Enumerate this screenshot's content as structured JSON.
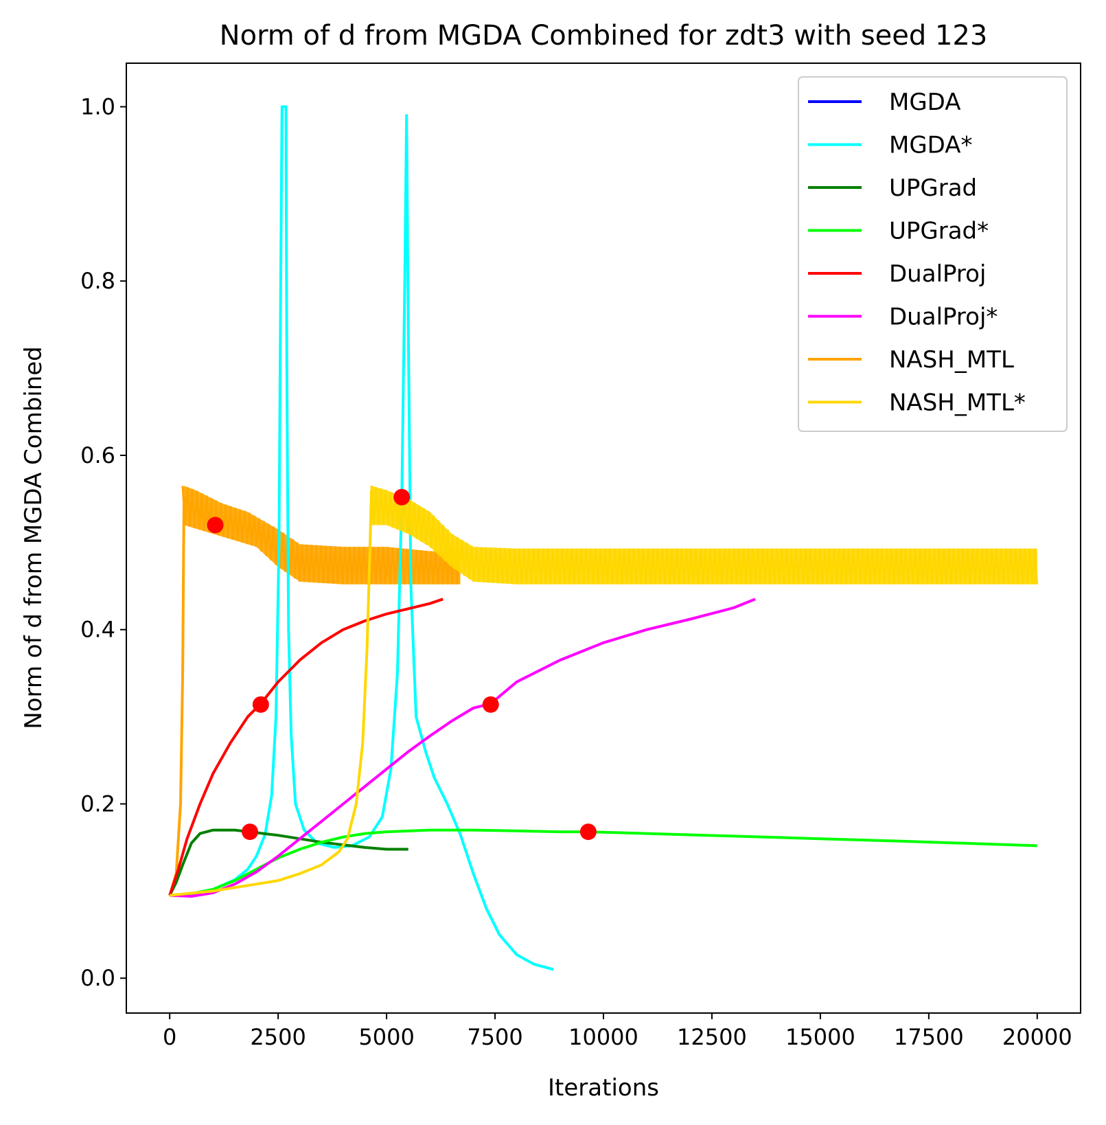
{
  "chart_data": {
    "type": "line",
    "title": "Norm of d from MGDA Combined for zdt3 with seed 123",
    "xlabel": "Iterations",
    "ylabel": "Norm of d from MGDA Combined",
    "xlim": [
      -1000,
      21000
    ],
    "ylim": [
      -0.04,
      1.05
    ],
    "xticks": [
      0,
      2500,
      5000,
      7500,
      10000,
      12500,
      15000,
      17500,
      20000
    ],
    "xtick_labels": [
      "0",
      "2500",
      "5000",
      "7500",
      "10000",
      "12500",
      "15000",
      "17500",
      "20000"
    ],
    "yticks": [
      0.0,
      0.2,
      0.4,
      0.6,
      0.8,
      1.0
    ],
    "ytick_labels": [
      "0.0",
      "0.2",
      "0.4",
      "0.6",
      "0.8",
      "1.0"
    ],
    "grid": false,
    "legend_position": "upper right",
    "series": [
      {
        "name": "MGDA",
        "color": "#0000ff",
        "points": []
      },
      {
        "name": "MGDA*",
        "color": "#00ffff",
        "points": [
          [
            0,
            0.095
          ],
          [
            500,
            0.097
          ],
          [
            1000,
            0.102
          ],
          [
            1500,
            0.113
          ],
          [
            1800,
            0.125
          ],
          [
            2000,
            0.14
          ],
          [
            2200,
            0.165
          ],
          [
            2350,
            0.21
          ],
          [
            2450,
            0.3
          ],
          [
            2520,
            0.5
          ],
          [
            2560,
            0.8
          ],
          [
            2590,
            1.0
          ],
          [
            2680,
            1.0
          ],
          [
            2700,
            0.7
          ],
          [
            2740,
            0.4
          ],
          [
            2800,
            0.28
          ],
          [
            2900,
            0.2
          ],
          [
            3100,
            0.17
          ],
          [
            3400,
            0.155
          ],
          [
            3800,
            0.15
          ],
          [
            4200,
            0.152
          ],
          [
            4600,
            0.162
          ],
          [
            4900,
            0.185
          ],
          [
            5100,
            0.24
          ],
          [
            5250,
            0.35
          ],
          [
            5350,
            0.55
          ],
          [
            5420,
            0.8
          ],
          [
            5460,
            0.99
          ],
          [
            5500,
            0.75
          ],
          [
            5560,
            0.45
          ],
          [
            5680,
            0.3
          ],
          [
            5900,
            0.26
          ],
          [
            6100,
            0.23
          ],
          [
            6400,
            0.2
          ],
          [
            6700,
            0.165
          ],
          [
            7000,
            0.12
          ],
          [
            7300,
            0.08
          ],
          [
            7600,
            0.05
          ],
          [
            8000,
            0.027
          ],
          [
            8400,
            0.016
          ],
          [
            8850,
            0.01
          ]
        ]
      },
      {
        "name": "UPGrad",
        "color": "#008000",
        "points": [
          [
            0,
            0.095
          ],
          [
            150,
            0.11
          ],
          [
            300,
            0.13
          ],
          [
            500,
            0.155
          ],
          [
            700,
            0.166
          ],
          [
            1000,
            0.17
          ],
          [
            1500,
            0.17
          ],
          [
            2000,
            0.167
          ],
          [
            2500,
            0.164
          ],
          [
            3000,
            0.16
          ],
          [
            3500,
            0.156
          ],
          [
            4000,
            0.153
          ],
          [
            4500,
            0.15
          ],
          [
            5000,
            0.148
          ],
          [
            5500,
            0.148
          ]
        ]
      },
      {
        "name": "UPGrad*",
        "color": "#00ff00",
        "points": [
          [
            0,
            0.095
          ],
          [
            500,
            0.097
          ],
          [
            1000,
            0.102
          ],
          [
            1500,
            0.112
          ],
          [
            2000,
            0.125
          ],
          [
            2500,
            0.138
          ],
          [
            3000,
            0.148
          ],
          [
            3500,
            0.156
          ],
          [
            4000,
            0.162
          ],
          [
            4500,
            0.166
          ],
          [
            5000,
            0.168
          ],
          [
            6000,
            0.17
          ],
          [
            7000,
            0.17
          ],
          [
            8000,
            0.169
          ],
          [
            9000,
            0.168
          ],
          [
            9650,
            0.168
          ],
          [
            11000,
            0.166
          ],
          [
            13000,
            0.163
          ],
          [
            15000,
            0.16
          ],
          [
            17000,
            0.157
          ],
          [
            20000,
            0.152
          ]
        ]
      },
      {
        "name": "DualProj",
        "color": "#ff0000",
        "points": [
          [
            0,
            0.095
          ],
          [
            200,
            0.125
          ],
          [
            400,
            0.16
          ],
          [
            700,
            0.2
          ],
          [
            1000,
            0.235
          ],
          [
            1400,
            0.27
          ],
          [
            1800,
            0.3
          ],
          [
            2100,
            0.315
          ],
          [
            2500,
            0.34
          ],
          [
            3000,
            0.365
          ],
          [
            3500,
            0.385
          ],
          [
            4000,
            0.4
          ],
          [
            4500,
            0.41
          ],
          [
            5000,
            0.418
          ],
          [
            5500,
            0.424
          ],
          [
            6000,
            0.43
          ],
          [
            6300,
            0.435
          ]
        ]
      },
      {
        "name": "DualProj*",
        "color": "#ff00ff",
        "points": [
          [
            0,
            0.095
          ],
          [
            500,
            0.094
          ],
          [
            1000,
            0.098
          ],
          [
            1500,
            0.108
          ],
          [
            2000,
            0.122
          ],
          [
            2500,
            0.14
          ],
          [
            3000,
            0.16
          ],
          [
            3500,
            0.18
          ],
          [
            4000,
            0.2
          ],
          [
            4500,
            0.22
          ],
          [
            5000,
            0.24
          ],
          [
            5500,
            0.26
          ],
          [
            6000,
            0.278
          ],
          [
            6500,
            0.295
          ],
          [
            7000,
            0.31
          ],
          [
            7400,
            0.315
          ],
          [
            8000,
            0.34
          ],
          [
            9000,
            0.365
          ],
          [
            10000,
            0.385
          ],
          [
            11000,
            0.4
          ],
          [
            12000,
            0.412
          ],
          [
            13000,
            0.425
          ],
          [
            13500,
            0.435
          ]
        ]
      },
      {
        "name": "NASH_MTL",
        "color": "#ffa500",
        "band": {
          "x_start": 300,
          "x_end": 6700,
          "upper": [
            [
              330,
              0.565
            ],
            [
              600,
              0.56
            ],
            [
              1200,
              0.545
            ],
            [
              1800,
              0.535
            ],
            [
              2500,
              0.515
            ],
            [
              3000,
              0.498
            ],
            [
              4000,
              0.495
            ],
            [
              5000,
              0.495
            ],
            [
              6000,
              0.49
            ],
            [
              6700,
              0.49
            ]
          ],
          "lower": [
            [
              330,
              0.52
            ],
            [
              1000,
              0.51
            ],
            [
              2000,
              0.495
            ],
            [
              2500,
              0.472
            ],
            [
              3000,
              0.455
            ],
            [
              4000,
              0.452
            ],
            [
              5000,
              0.452
            ],
            [
              6000,
              0.452
            ],
            [
              6700,
              0.452
            ]
          ]
        },
        "points": [
          [
            0,
            0.095
          ],
          [
            150,
            0.12
          ],
          [
            250,
            0.2
          ],
          [
            300,
            0.35
          ],
          [
            330,
            0.55
          ],
          [
            1000,
            0.52
          ]
        ]
      },
      {
        "name": "NASH_MTL*",
        "color": "#ffd700",
        "band": {
          "x_start": 4650,
          "x_end": 20000,
          "upper": [
            [
              4650,
              0.565
            ],
            [
              5000,
              0.56
            ],
            [
              5500,
              0.55
            ],
            [
              6000,
              0.535
            ],
            [
              6500,
              0.51
            ],
            [
              7000,
              0.495
            ],
            [
              8000,
              0.493
            ],
            [
              20000,
              0.493
            ]
          ],
          "lower": [
            [
              4650,
              0.52
            ],
            [
              5000,
              0.52
            ],
            [
              5500,
              0.51
            ],
            [
              6000,
              0.495
            ],
            [
              6500,
              0.472
            ],
            [
              7000,
              0.455
            ],
            [
              8000,
              0.452
            ],
            [
              20000,
              0.452
            ]
          ]
        },
        "points": [
          [
            0,
            0.095
          ],
          [
            1000,
            0.1
          ],
          [
            2000,
            0.108
          ],
          [
            2500,
            0.112
          ],
          [
            3000,
            0.12
          ],
          [
            3500,
            0.13
          ],
          [
            3900,
            0.145
          ],
          [
            4100,
            0.16
          ],
          [
            4300,
            0.2
          ],
          [
            4450,
            0.27
          ],
          [
            4550,
            0.38
          ],
          [
            4620,
            0.5
          ],
          [
            4650,
            0.56
          ]
        ]
      }
    ],
    "markers": [
      {
        "series": "NASH_MTL",
        "x": 1050,
        "y": 0.52
      },
      {
        "series": "DualProj",
        "x": 2100,
        "y": 0.314
      },
      {
        "series": "UPGrad",
        "x": 1850,
        "y": 0.168
      },
      {
        "series": "NASH_MTL*",
        "x": 5350,
        "y": 0.552
      },
      {
        "series": "DualProj*",
        "x": 7400,
        "y": 0.314
      },
      {
        "series": "UPGrad*",
        "x": 9650,
        "y": 0.168
      }
    ],
    "marker_color": "#ff0000"
  }
}
